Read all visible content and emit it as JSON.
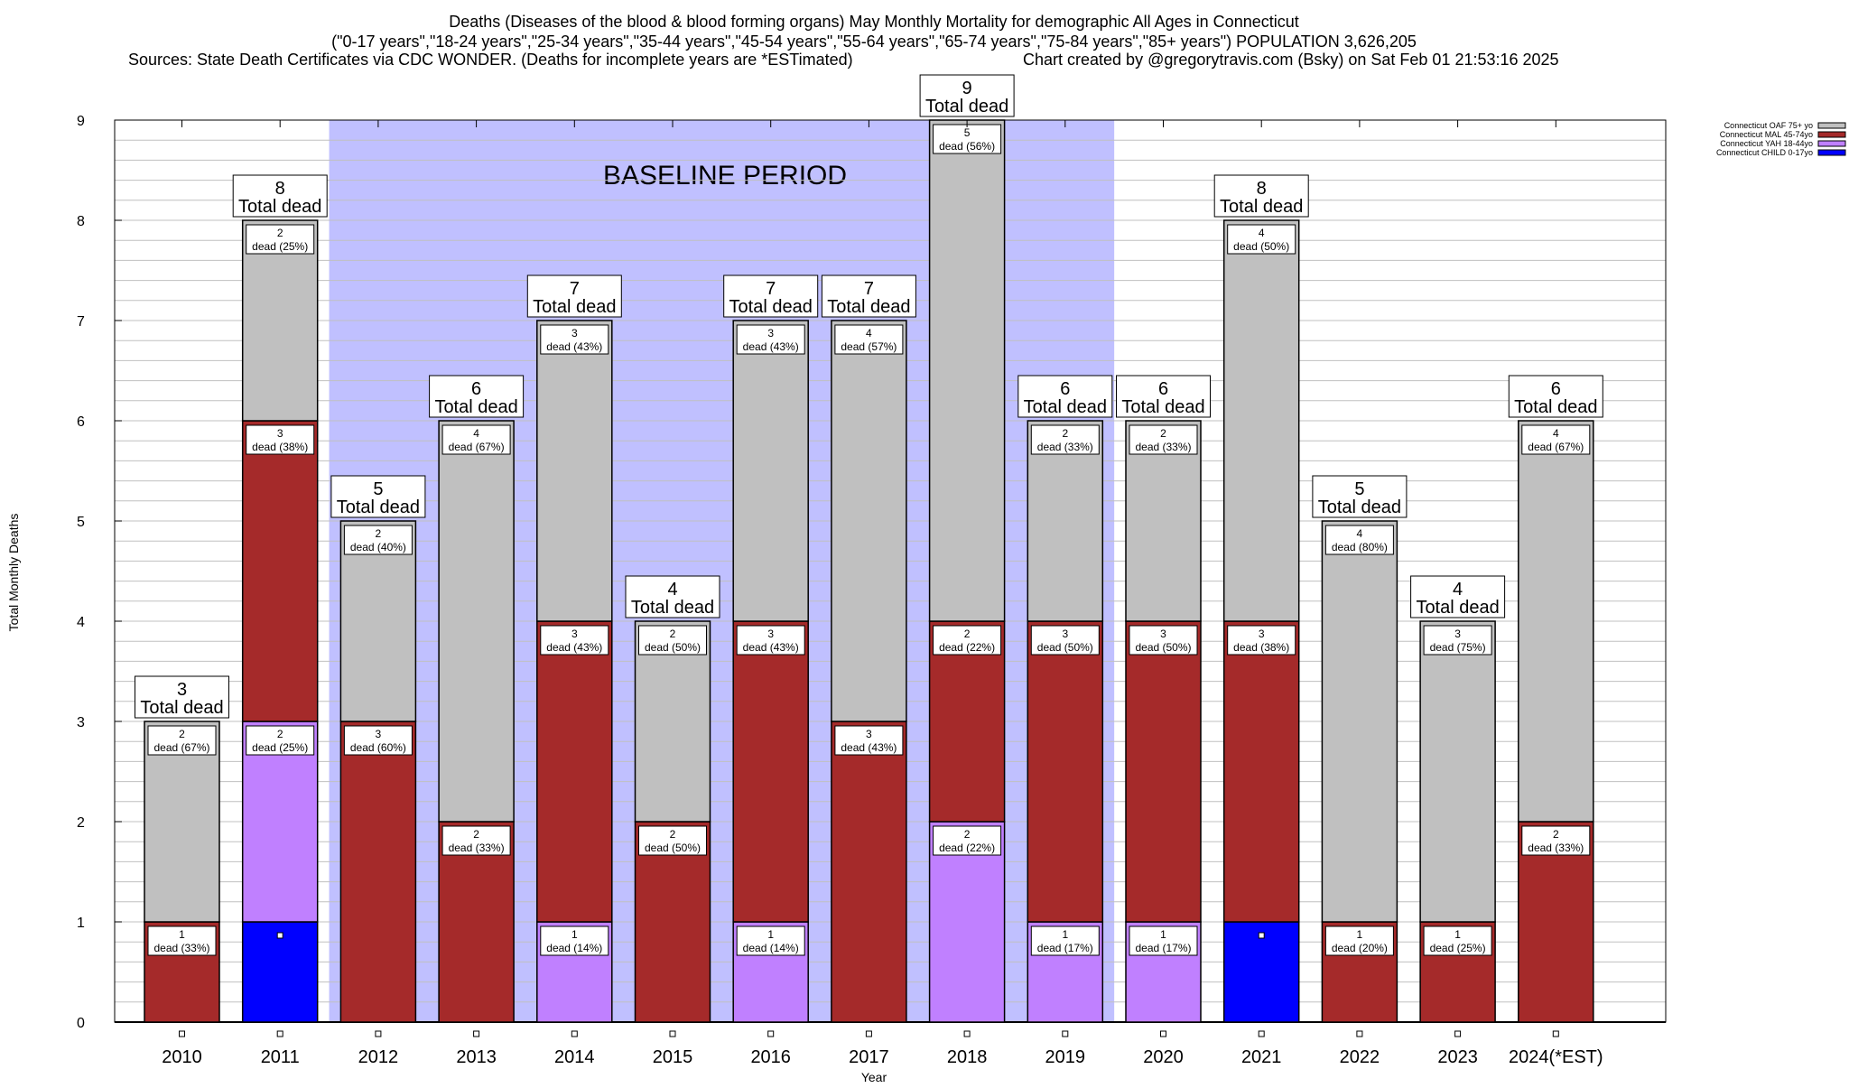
{
  "chart_data": {
    "type": "bar",
    "stacked": true,
    "title_lines": [
      "Deaths (Diseases of the blood & blood forming organs) May Monthly Mortality for demographic All Ages in Connecticut",
      "(\"0-17 years\",\"18-24 years\",\"25-34 years\",\"35-44 years\",\"45-54 years\",\"55-64 years\",\"65-74 years\",\"75-84 years\",\"85+ years\") POPULATION 3,626,205"
    ],
    "sources": "Sources: State Death Certificates via CDC WONDER. (Deaths for incomplete years are *ESTimated)",
    "credit": "Chart created by @gregorytravis.com (Bsky) on Sat Feb 01 21:53:16 2025",
    "xlabel": "Year",
    "ylabel": "Total Monthly Deaths",
    "ylim": [
      0,
      9
    ],
    "yticks": [
      0,
      1,
      2,
      3,
      4,
      5,
      6,
      7,
      8,
      9
    ],
    "grid": true,
    "legend_position": "top-right",
    "baseline": {
      "label": "BASELINE PERIOD",
      "from_index": 1.5,
      "to_index": 9.5,
      "color": "#c0c0ff"
    },
    "total_label": "Total dead",
    "dead_word": "dead",
    "categories": [
      "2010",
      "2011",
      "2012",
      "2013",
      "2014",
      "2015",
      "2016",
      "2017",
      "2018",
      "2019",
      "2020",
      "2021",
      "2022",
      "2023",
      "2024(*EST)"
    ],
    "series": [
      {
        "name": "Connecticut CHILD 0-17yo",
        "color": "#0000ff",
        "labeled": false,
        "values": [
          0,
          1,
          0,
          0,
          0,
          0,
          0,
          0,
          0,
          0,
          0,
          1,
          0,
          0,
          0
        ]
      },
      {
        "name": "Connecticut YAH 18-44yo",
        "color": "#c080ff",
        "labeled": true,
        "values": [
          0,
          2,
          0,
          0,
          1,
          0,
          1,
          0,
          2,
          1,
          1,
          0,
          0,
          0,
          0
        ]
      },
      {
        "name": "Connecticut MAL 45-74yo",
        "color": "#a52a2a",
        "labeled": true,
        "values": [
          1,
          3,
          3,
          2,
          3,
          2,
          3,
          3,
          2,
          3,
          3,
          3,
          1,
          1,
          2
        ]
      },
      {
        "name": "Connecticut OAF 75+ yo",
        "color": "#c0c0c0",
        "labeled": true,
        "values": [
          2,
          2,
          2,
          4,
          3,
          2,
          3,
          4,
          5,
          2,
          2,
          4,
          4,
          3,
          4
        ]
      }
    ],
    "totals": [
      3,
      8,
      5,
      6,
      7,
      4,
      7,
      7,
      9,
      6,
      6,
      8,
      5,
      4,
      6
    ]
  }
}
